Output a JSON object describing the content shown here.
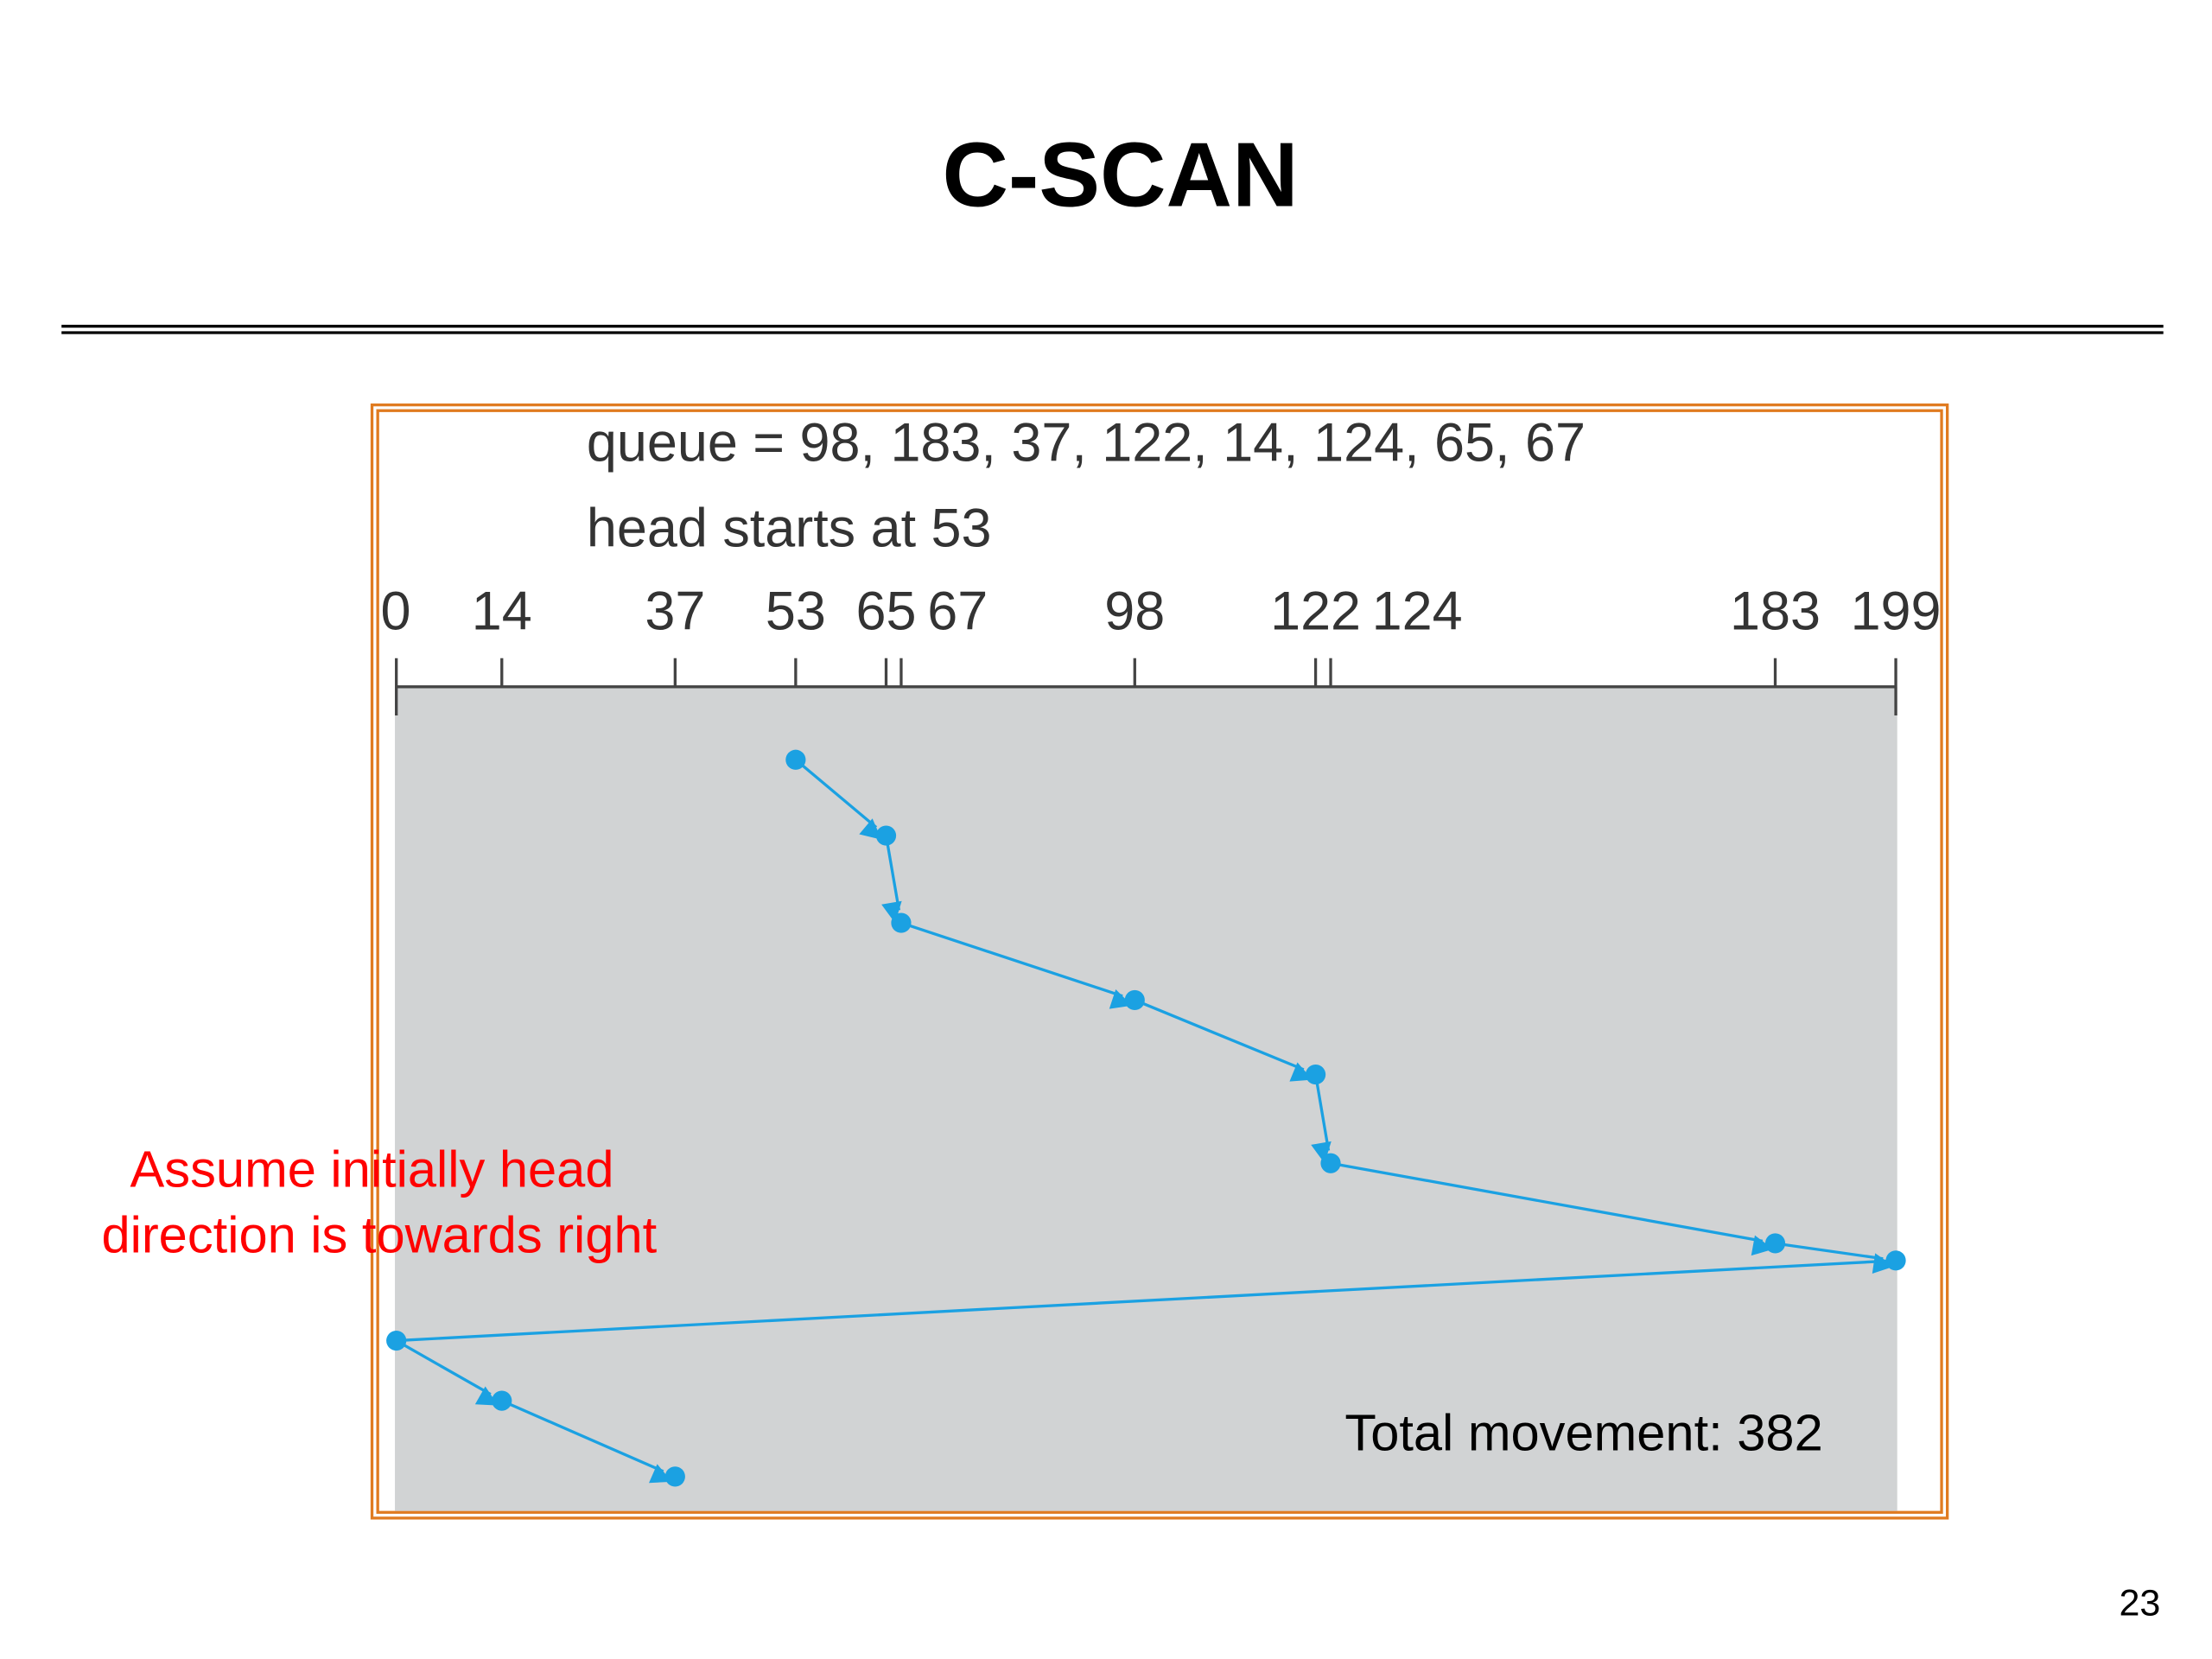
{
  "slide": {
    "title": "C-SCAN",
    "page_number": "23"
  },
  "figure": {
    "queue_text": "queue = 98, 183, 37, 122, 14, 124, 65, 67",
    "head_text": "head starts at 53",
    "axis": {
      "xlim": [
        0,
        199
      ],
      "xticks": [
        0,
        14,
        37,
        53,
        65,
        67,
        98,
        122,
        124,
        183,
        199
      ]
    },
    "path": [
      53,
      65,
      67,
      98,
      122,
      124,
      183,
      199,
      0,
      14,
      37
    ],
    "total_text": "Total movement: 382"
  },
  "note": {
    "lines": [
      "Assume initially head",
      "direction is towards right"
    ]
  }
}
